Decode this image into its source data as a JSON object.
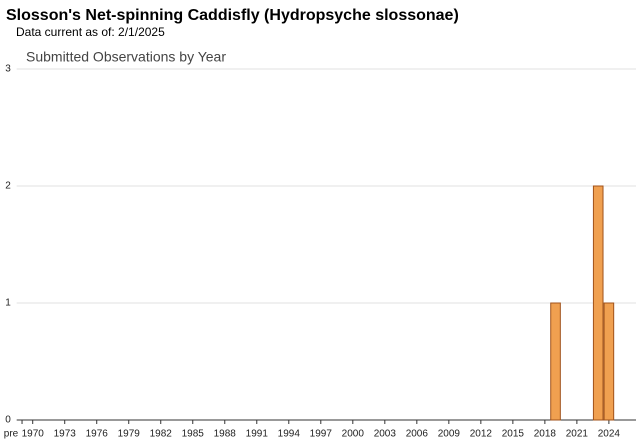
{
  "chart_data": {
    "type": "bar",
    "title": "Slosson's Net-spinning Caddisfly   (Hydropsyche slossonae)",
    "subtitle": "Data current as of: 2/1/2025",
    "chart_title": "Submitted Observations by Year",
    "categories": [
      "pre",
      "1970",
      null,
      null,
      "1973",
      null,
      null,
      "1976",
      null,
      null,
      "1979",
      null,
      null,
      "1982",
      null,
      null,
      "1985",
      null,
      null,
      "1988",
      null,
      null,
      "1991",
      null,
      null,
      "1994",
      null,
      null,
      "1997",
      null,
      null,
      "2000",
      null,
      null,
      "2003",
      null,
      null,
      "2006",
      null,
      null,
      "2009",
      null,
      null,
      "2012",
      null,
      null,
      "2015",
      null,
      null,
      "2018",
      null,
      null,
      "2021",
      null,
      null,
      "2024",
      null
    ],
    "values": [
      0,
      0,
      0,
      0,
      0,
      0,
      0,
      0,
      0,
      0,
      0,
      0,
      0,
      0,
      0,
      0,
      0,
      0,
      0,
      0,
      0,
      0,
      0,
      0,
      0,
      0,
      0,
      0,
      0,
      0,
      0,
      0,
      0,
      0,
      0,
      0,
      0,
      0,
      0,
      0,
      0,
      0,
      0,
      0,
      0,
      0,
      0,
      0,
      0,
      0,
      1,
      0,
      0,
      0,
      2,
      1,
      0
    ],
    "color": "#f0a050",
    "ylim": [
      0,
      3
    ],
    "yticks": [
      0,
      1,
      2,
      3
    ],
    "grid": true
  }
}
